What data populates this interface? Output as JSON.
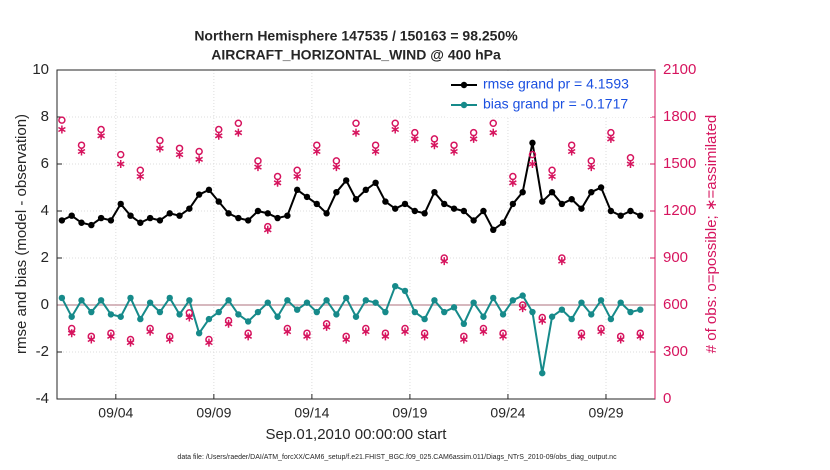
{
  "chart_data": {
    "type": "line",
    "title": "Northern Hemisphere 147535 / 150163 = 98.250%",
    "subtitle": "AIRCRAFT_HORIZONTAL_WIND @ 400 hPa",
    "xlabel": "Sep.01,2010 00:00:00 start",
    "ylabel": "rmse and bias (model - observation)",
    "y2label": "# of obs: o=possible; ∗=assimilated",
    "footnote": "data file: /Users/raeder/DAI/ATM_forcXX/CAM6_setup/f.e21.FHIST_BGC.f09_025.CAM6assim.011/Diags_NTrS_2010-09/obs_diag_output.nc",
    "grid": true,
    "legend": "upper right",
    "xlim": [
      0,
      30.5
    ],
    "xticks": [
      {
        "value": 3,
        "label": "09/04"
      },
      {
        "value": 8,
        "label": "09/09"
      },
      {
        "value": 13,
        "label": "09/14"
      },
      {
        "value": 18,
        "label": "09/19"
      },
      {
        "value": 23,
        "label": "09/24"
      },
      {
        "value": 28,
        "label": "09/29"
      }
    ],
    "ylim": [
      -4,
      10
    ],
    "yticks": [
      -4,
      -2,
      0,
      2,
      4,
      6,
      8,
      10
    ],
    "y2lim": [
      0,
      2100
    ],
    "y2ticks": [
      0,
      300,
      600,
      900,
      1200,
      1500,
      1800,
      2100
    ],
    "x": [
      0.25,
      0.75,
      1.25,
      1.75,
      2.25,
      2.75,
      3.25,
      3.75,
      4.25,
      4.75,
      5.25,
      5.75,
      6.25,
      6.75,
      7.25,
      7.75,
      8.25,
      8.75,
      9.25,
      9.75,
      10.25,
      10.75,
      11.25,
      11.75,
      12.25,
      12.75,
      13.25,
      13.75,
      14.25,
      14.75,
      15.25,
      15.75,
      16.25,
      16.75,
      17.25,
      17.75,
      18.25,
      18.75,
      19.25,
      19.75,
      20.25,
      20.75,
      21.25,
      21.75,
      22.25,
      22.75,
      23.25,
      23.75,
      24.25,
      24.75,
      25.25,
      25.75,
      26.25,
      26.75,
      27.25,
      27.75,
      28.25,
      28.75,
      29.25,
      29.75
    ],
    "series": [
      {
        "name": "rmse grand pr = 4.1593",
        "color": "#000000",
        "marker": "dot",
        "values": [
          3.6,
          3.8,
          3.5,
          3.4,
          3.7,
          3.6,
          4.3,
          3.8,
          3.5,
          3.7,
          3.6,
          3.9,
          3.8,
          4.1,
          4.7,
          4.9,
          4.4,
          3.9,
          3.7,
          3.6,
          4.0,
          3.9,
          3.7,
          3.8,
          4.9,
          4.6,
          4.3,
          3.9,
          4.8,
          5.3,
          4.5,
          4.9,
          5.2,
          4.4,
          4.1,
          4.3,
          4.0,
          3.9,
          4.8,
          4.3,
          4.1,
          4.0,
          3.6,
          4.0,
          3.2,
          3.5,
          4.3,
          4.8,
          6.9,
          4.4,
          4.8,
          4.3,
          4.5,
          4.1,
          4.8,
          5.0,
          4.0,
          3.8,
          4.0,
          3.8
        ]
      },
      {
        "name": "bias grand pr = -0.1717",
        "color": "#168a8a",
        "marker": "dot",
        "values": [
          0.3,
          -0.5,
          0.2,
          -0.3,
          0.2,
          -0.4,
          -0.5,
          0.3,
          -0.6,
          0.1,
          -0.3,
          0.3,
          -0.4,
          0.2,
          -1.2,
          -0.6,
          -0.3,
          0.2,
          -0.4,
          -0.7,
          -0.3,
          0.1,
          -0.5,
          0.2,
          -0.2,
          0.1,
          -0.3,
          0.2,
          -0.4,
          0.3,
          -0.5,
          0.2,
          0.1,
          -0.3,
          0.8,
          0.6,
          -0.3,
          -0.6,
          0.2,
          -0.3,
          -0.1,
          -0.8,
          0.1,
          -0.5,
          0.3,
          -0.4,
          0.2,
          0.4,
          -0.3,
          -2.9,
          -0.5,
          -0.2,
          -0.6,
          0.1,
          -0.4,
          0.2,
          -0.6,
          0.1,
          -0.3,
          -0.2
        ]
      },
      {
        "color": "#d6145e",
        "marker": "circle",
        "axis": "y2",
        "values": [
          1780,
          450,
          1620,
          400,
          1720,
          420,
          1560,
          380,
          1460,
          450,
          1650,
          400,
          1600,
          550,
          1580,
          380,
          1720,
          500,
          1760,
          420,
          1520,
          1100,
          1420,
          450,
          1460,
          420,
          1620,
          480,
          1520,
          400,
          1760,
          450,
          1620,
          420,
          1760,
          450,
          1700,
          420,
          1660,
          900,
          1620,
          400,
          1700,
          450,
          1760,
          420,
          1420,
          600,
          1560,
          520,
          1460,
          900,
          1620,
          420,
          1520,
          450,
          1700,
          400,
          1540,
          420
        ]
      },
      {
        "color": "#d6145e",
        "marker": "asterisk",
        "axis": "y2",
        "values": [
          1720,
          420,
          1580,
          380,
          1680,
          400,
          1500,
          360,
          1420,
          430,
          1600,
          380,
          1560,
          520,
          1530,
          360,
          1680,
          480,
          1700,
          400,
          1480,
          1080,
          1380,
          430,
          1420,
          400,
          1580,
          460,
          1480,
          380,
          1700,
          430,
          1580,
          400,
          1720,
          430,
          1660,
          400,
          1620,
          880,
          1580,
          380,
          1660,
          430,
          1700,
          400,
          1380,
          580,
          1500,
          500,
          1420,
          880,
          1580,
          400,
          1480,
          430,
          1660,
          380,
          1500,
          400
        ]
      }
    ]
  }
}
